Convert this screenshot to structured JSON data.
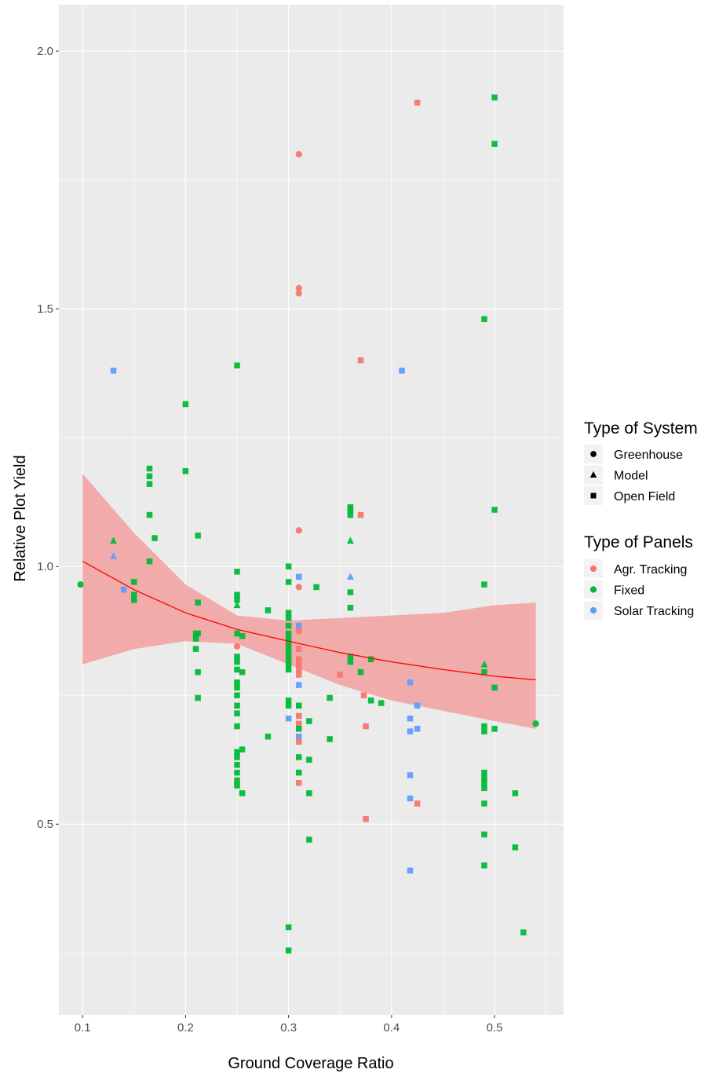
{
  "chart_data": {
    "type": "scatter",
    "title": "",
    "xlabel": "Ground Coverage Ratio",
    "ylabel": "Relative Plot Yield",
    "xlim": [
      0.077,
      0.567
    ],
    "ylim": [
      0.13,
      2.09
    ],
    "x_ticks": [
      0.1,
      0.2,
      0.3,
      0.4,
      0.5
    ],
    "x_tick_labels": [
      "0.1",
      "0.2",
      "0.3",
      "0.4",
      "0.5"
    ],
    "y_ticks": [
      0.5,
      1.0,
      1.5,
      2.0
    ],
    "y_tick_labels": [
      "0.5",
      "1.0",
      "1.5",
      "2.0"
    ],
    "grid": true,
    "legend_placement": "right",
    "colors": {
      "panel_bg": "#EBEBEB",
      "grid": "#FFFFFF",
      "Agr. Tracking": "#F8766D",
      "Fixed": "#00BA38",
      "Solar Tracking": "#619CFF",
      "trend": "#FF0000",
      "ribbon": "#F29B9B"
    },
    "legends": [
      {
        "title": "Type of System",
        "entries": [
          {
            "label": "Greenhouse",
            "shape": "circle"
          },
          {
            "label": "Model",
            "shape": "triangle"
          },
          {
            "label": "Open Field",
            "shape": "square"
          }
        ]
      },
      {
        "title": "Type of Panels",
        "entries": [
          {
            "label": "Agr. Tracking",
            "color": "#F8766D"
          },
          {
            "label": "Fixed",
            "color": "#00BA38"
          },
          {
            "label": "Solar Tracking",
            "color": "#619CFF"
          }
        ]
      }
    ],
    "trend": {
      "x": [
        0.1,
        0.15,
        0.2,
        0.25,
        0.3,
        0.35,
        0.4,
        0.45,
        0.5,
        0.54
      ],
      "y": [
        1.01,
        0.955,
        0.91,
        0.878,
        0.855,
        0.833,
        0.815,
        0.8,
        0.787,
        0.78
      ],
      "lower": [
        0.81,
        0.84,
        0.855,
        0.85,
        0.81,
        0.77,
        0.74,
        0.72,
        0.7,
        0.685
      ],
      "upper": [
        1.18,
        1.065,
        0.965,
        0.905,
        0.895,
        0.9,
        0.905,
        0.91,
        0.925,
        0.93
      ]
    },
    "points": [
      {
        "x": 0.098,
        "y": 0.965,
        "panel": "Fixed",
        "system": "Greenhouse"
      },
      {
        "x": 0.13,
        "y": 1.38,
        "panel": "Solar Tracking",
        "system": "Open Field"
      },
      {
        "x": 0.13,
        "y": 1.05,
        "panel": "Fixed",
        "system": "Model"
      },
      {
        "x": 0.13,
        "y": 1.02,
        "panel": "Solar Tracking",
        "system": "Model"
      },
      {
        "x": 0.14,
        "y": 0.955,
        "panel": "Solar Tracking",
        "system": "Open Field"
      },
      {
        "x": 0.15,
        "y": 0.97,
        "panel": "Fixed",
        "system": "Open Field"
      },
      {
        "x": 0.15,
        "y": 0.945,
        "panel": "Fixed",
        "system": "Open Field"
      },
      {
        "x": 0.15,
        "y": 0.935,
        "panel": "Fixed",
        "system": "Open Field"
      },
      {
        "x": 0.165,
        "y": 1.19,
        "panel": "Fixed",
        "system": "Open Field"
      },
      {
        "x": 0.165,
        "y": 1.175,
        "panel": "Fixed",
        "system": "Open Field"
      },
      {
        "x": 0.165,
        "y": 1.16,
        "panel": "Fixed",
        "system": "Open Field"
      },
      {
        "x": 0.165,
        "y": 1.1,
        "panel": "Fixed",
        "system": "Open Field"
      },
      {
        "x": 0.165,
        "y": 1.01,
        "panel": "Fixed",
        "system": "Open Field"
      },
      {
        "x": 0.17,
        "y": 1.055,
        "panel": "Fixed",
        "system": "Open Field"
      },
      {
        "x": 0.2,
        "y": 1.315,
        "panel": "Fixed",
        "system": "Open Field"
      },
      {
        "x": 0.2,
        "y": 1.185,
        "panel": "Fixed",
        "system": "Open Field"
      },
      {
        "x": 0.21,
        "y": 0.87,
        "panel": "Fixed",
        "system": "Open Field"
      },
      {
        "x": 0.21,
        "y": 0.86,
        "panel": "Fixed",
        "system": "Open Field"
      },
      {
        "x": 0.21,
        "y": 0.84,
        "panel": "Fixed",
        "system": "Open Field"
      },
      {
        "x": 0.212,
        "y": 1.06,
        "panel": "Fixed",
        "system": "Open Field"
      },
      {
        "x": 0.212,
        "y": 0.93,
        "panel": "Fixed",
        "system": "Open Field"
      },
      {
        "x": 0.212,
        "y": 0.87,
        "panel": "Fixed",
        "system": "Open Field"
      },
      {
        "x": 0.212,
        "y": 0.795,
        "panel": "Fixed",
        "system": "Open Field"
      },
      {
        "x": 0.212,
        "y": 0.745,
        "panel": "Fixed",
        "system": "Open Field"
      },
      {
        "x": 0.25,
        "y": 1.39,
        "panel": "Fixed",
        "system": "Open Field"
      },
      {
        "x": 0.25,
        "y": 0.99,
        "panel": "Fixed",
        "system": "Open Field"
      },
      {
        "x": 0.25,
        "y": 0.945,
        "panel": "Fixed",
        "system": "Open Field"
      },
      {
        "x": 0.25,
        "y": 0.935,
        "panel": "Fixed",
        "system": "Open Field"
      },
      {
        "x": 0.25,
        "y": 0.925,
        "panel": "Fixed",
        "system": "Model"
      },
      {
        "x": 0.25,
        "y": 0.87,
        "panel": "Fixed",
        "system": "Open Field"
      },
      {
        "x": 0.25,
        "y": 0.845,
        "panel": "Agr. Tracking",
        "system": "Greenhouse"
      },
      {
        "x": 0.25,
        "y": 0.825,
        "panel": "Fixed",
        "system": "Open Field"
      },
      {
        "x": 0.25,
        "y": 0.815,
        "panel": "Fixed",
        "system": "Open Field"
      },
      {
        "x": 0.25,
        "y": 0.8,
        "panel": "Fixed",
        "system": "Open Field"
      },
      {
        "x": 0.25,
        "y": 0.775,
        "panel": "Fixed",
        "system": "Open Field"
      },
      {
        "x": 0.25,
        "y": 0.765,
        "panel": "Fixed",
        "system": "Open Field"
      },
      {
        "x": 0.25,
        "y": 0.75,
        "panel": "Fixed",
        "system": "Open Field"
      },
      {
        "x": 0.25,
        "y": 0.73,
        "panel": "Fixed",
        "system": "Open Field"
      },
      {
        "x": 0.25,
        "y": 0.715,
        "panel": "Fixed",
        "system": "Open Field"
      },
      {
        "x": 0.25,
        "y": 0.69,
        "panel": "Fixed",
        "system": "Open Field"
      },
      {
        "x": 0.25,
        "y": 0.64,
        "panel": "Fixed",
        "system": "Open Field"
      },
      {
        "x": 0.25,
        "y": 0.63,
        "panel": "Fixed",
        "system": "Open Field"
      },
      {
        "x": 0.25,
        "y": 0.615,
        "panel": "Fixed",
        "system": "Open Field"
      },
      {
        "x": 0.25,
        "y": 0.6,
        "panel": "Fixed",
        "system": "Open Field"
      },
      {
        "x": 0.25,
        "y": 0.585,
        "panel": "Fixed",
        "system": "Open Field"
      },
      {
        "x": 0.25,
        "y": 0.575,
        "panel": "Fixed",
        "system": "Open Field"
      },
      {
        "x": 0.255,
        "y": 0.865,
        "panel": "Fixed",
        "system": "Open Field"
      },
      {
        "x": 0.255,
        "y": 0.795,
        "panel": "Fixed",
        "system": "Open Field"
      },
      {
        "x": 0.255,
        "y": 0.645,
        "panel": "Fixed",
        "system": "Open Field"
      },
      {
        "x": 0.255,
        "y": 0.56,
        "panel": "Fixed",
        "system": "Open Field"
      },
      {
        "x": 0.28,
        "y": 0.915,
        "panel": "Fixed",
        "system": "Open Field"
      },
      {
        "x": 0.28,
        "y": 0.67,
        "panel": "Fixed",
        "system": "Open Field"
      },
      {
        "x": 0.3,
        "y": 1.0,
        "panel": "Fixed",
        "system": "Open Field"
      },
      {
        "x": 0.3,
        "y": 0.97,
        "panel": "Fixed",
        "system": "Open Field"
      },
      {
        "x": 0.3,
        "y": 0.91,
        "panel": "Fixed",
        "system": "Open Field"
      },
      {
        "x": 0.3,
        "y": 0.9,
        "panel": "Fixed",
        "system": "Open Field"
      },
      {
        "x": 0.3,
        "y": 0.885,
        "panel": "Fixed",
        "system": "Open Field"
      },
      {
        "x": 0.3,
        "y": 0.87,
        "panel": "Fixed",
        "system": "Open Field"
      },
      {
        "x": 0.3,
        "y": 0.86,
        "panel": "Fixed",
        "system": "Open Field"
      },
      {
        "x": 0.3,
        "y": 0.85,
        "panel": "Fixed",
        "system": "Open Field"
      },
      {
        "x": 0.3,
        "y": 0.84,
        "panel": "Fixed",
        "system": "Open Field"
      },
      {
        "x": 0.3,
        "y": 0.83,
        "panel": "Fixed",
        "system": "Open Field"
      },
      {
        "x": 0.3,
        "y": 0.82,
        "panel": "Fixed",
        "system": "Open Field"
      },
      {
        "x": 0.3,
        "y": 0.81,
        "panel": "Fixed",
        "system": "Open Field"
      },
      {
        "x": 0.3,
        "y": 0.8,
        "panel": "Fixed",
        "system": "Open Field"
      },
      {
        "x": 0.3,
        "y": 0.74,
        "panel": "Fixed",
        "system": "Open Field"
      },
      {
        "x": 0.3,
        "y": 0.73,
        "panel": "Fixed",
        "system": "Open Field"
      },
      {
        "x": 0.3,
        "y": 0.705,
        "panel": "Solar Tracking",
        "system": "Open Field"
      },
      {
        "x": 0.3,
        "y": 0.3,
        "panel": "Fixed",
        "system": "Open Field"
      },
      {
        "x": 0.3,
        "y": 0.255,
        "panel": "Fixed",
        "system": "Open Field"
      },
      {
        "x": 0.31,
        "y": 1.8,
        "panel": "Agr. Tracking",
        "system": "Greenhouse"
      },
      {
        "x": 0.31,
        "y": 1.54,
        "panel": "Agr. Tracking",
        "system": "Greenhouse"
      },
      {
        "x": 0.31,
        "y": 1.53,
        "panel": "Agr. Tracking",
        "system": "Greenhouse"
      },
      {
        "x": 0.31,
        "y": 1.07,
        "panel": "Agr. Tracking",
        "system": "Greenhouse"
      },
      {
        "x": 0.31,
        "y": 0.98,
        "panel": "Solar Tracking",
        "system": "Open Field"
      },
      {
        "x": 0.31,
        "y": 0.96,
        "panel": "Agr. Tracking",
        "system": "Greenhouse"
      },
      {
        "x": 0.31,
        "y": 0.885,
        "panel": "Solar Tracking",
        "system": "Open Field"
      },
      {
        "x": 0.31,
        "y": 0.875,
        "panel": "Agr. Tracking",
        "system": "Greenhouse"
      },
      {
        "x": 0.31,
        "y": 0.84,
        "panel": "Agr. Tracking",
        "system": "Open Field"
      },
      {
        "x": 0.31,
        "y": 0.82,
        "panel": "Agr. Tracking",
        "system": "Open Field"
      },
      {
        "x": 0.31,
        "y": 0.81,
        "panel": "Agr. Tracking",
        "system": "Open Field"
      },
      {
        "x": 0.31,
        "y": 0.8,
        "panel": "Agr. Tracking",
        "system": "Open Field"
      },
      {
        "x": 0.31,
        "y": 0.79,
        "panel": "Agr. Tracking",
        "system": "Open Field"
      },
      {
        "x": 0.31,
        "y": 0.77,
        "panel": "Solar Tracking",
        "system": "Open Field"
      },
      {
        "x": 0.31,
        "y": 0.73,
        "panel": "Fixed",
        "system": "Open Field"
      },
      {
        "x": 0.31,
        "y": 0.71,
        "panel": "Agr. Tracking",
        "system": "Open Field"
      },
      {
        "x": 0.31,
        "y": 0.695,
        "panel": "Agr. Tracking",
        "system": "Open Field"
      },
      {
        "x": 0.31,
        "y": 0.685,
        "panel": "Fixed",
        "system": "Open Field"
      },
      {
        "x": 0.31,
        "y": 0.67,
        "panel": "Solar Tracking",
        "system": "Open Field"
      },
      {
        "x": 0.31,
        "y": 0.66,
        "panel": "Agr. Tracking",
        "system": "Open Field"
      },
      {
        "x": 0.31,
        "y": 0.63,
        "panel": "Fixed",
        "system": "Open Field"
      },
      {
        "x": 0.31,
        "y": 0.6,
        "panel": "Fixed",
        "system": "Open Field"
      },
      {
        "x": 0.31,
        "y": 0.58,
        "panel": "Agr. Tracking",
        "system": "Open Field"
      },
      {
        "x": 0.32,
        "y": 0.7,
        "panel": "Fixed",
        "system": "Open Field"
      },
      {
        "x": 0.32,
        "y": 0.625,
        "panel": "Fixed",
        "system": "Open Field"
      },
      {
        "x": 0.32,
        "y": 0.56,
        "panel": "Fixed",
        "system": "Open Field"
      },
      {
        "x": 0.32,
        "y": 0.47,
        "panel": "Fixed",
        "system": "Open Field"
      },
      {
        "x": 0.327,
        "y": 0.96,
        "panel": "Fixed",
        "system": "Open Field"
      },
      {
        "x": 0.34,
        "y": 0.745,
        "panel": "Fixed",
        "system": "Open Field"
      },
      {
        "x": 0.34,
        "y": 0.665,
        "panel": "Fixed",
        "system": "Open Field"
      },
      {
        "x": 0.35,
        "y": 0.79,
        "panel": "Agr. Tracking",
        "system": "Open Field"
      },
      {
        "x": 0.36,
        "y": 1.115,
        "panel": "Fixed",
        "system": "Open Field"
      },
      {
        "x": 0.36,
        "y": 1.11,
        "panel": "Fixed",
        "system": "Open Field"
      },
      {
        "x": 0.36,
        "y": 1.1,
        "panel": "Fixed",
        "system": "Open Field"
      },
      {
        "x": 0.36,
        "y": 1.05,
        "panel": "Fixed",
        "system": "Model"
      },
      {
        "x": 0.36,
        "y": 0.98,
        "panel": "Solar Tracking",
        "system": "Model"
      },
      {
        "x": 0.36,
        "y": 0.95,
        "panel": "Fixed",
        "system": "Open Field"
      },
      {
        "x": 0.36,
        "y": 0.92,
        "panel": "Fixed",
        "system": "Open Field"
      },
      {
        "x": 0.36,
        "y": 0.825,
        "panel": "Fixed",
        "system": "Open Field"
      },
      {
        "x": 0.36,
        "y": 0.815,
        "panel": "Fixed",
        "system": "Open Field"
      },
      {
        "x": 0.37,
        "y": 1.4,
        "panel": "Agr. Tracking",
        "system": "Open Field"
      },
      {
        "x": 0.37,
        "y": 1.1,
        "panel": "Agr. Tracking",
        "system": "Open Field"
      },
      {
        "x": 0.37,
        "y": 0.795,
        "panel": "Fixed",
        "system": "Open Field"
      },
      {
        "x": 0.373,
        "y": 0.75,
        "panel": "Agr. Tracking",
        "system": "Open Field"
      },
      {
        "x": 0.375,
        "y": 0.69,
        "panel": "Agr. Tracking",
        "system": "Open Field"
      },
      {
        "x": 0.375,
        "y": 0.51,
        "panel": "Agr. Tracking",
        "system": "Open Field"
      },
      {
        "x": 0.38,
        "y": 0.82,
        "panel": "Fixed",
        "system": "Open Field"
      },
      {
        "x": 0.38,
        "y": 0.74,
        "panel": "Fixed",
        "system": "Open Field"
      },
      {
        "x": 0.39,
        "y": 0.735,
        "panel": "Fixed",
        "system": "Open Field"
      },
      {
        "x": 0.41,
        "y": 1.38,
        "panel": "Solar Tracking",
        "system": "Open Field"
      },
      {
        "x": 0.418,
        "y": 0.775,
        "panel": "Solar Tracking",
        "system": "Open Field"
      },
      {
        "x": 0.418,
        "y": 0.705,
        "panel": "Solar Tracking",
        "system": "Open Field"
      },
      {
        "x": 0.418,
        "y": 0.68,
        "panel": "Solar Tracking",
        "system": "Open Field"
      },
      {
        "x": 0.418,
        "y": 0.595,
        "panel": "Solar Tracking",
        "system": "Open Field"
      },
      {
        "x": 0.418,
        "y": 0.55,
        "panel": "Solar Tracking",
        "system": "Open Field"
      },
      {
        "x": 0.418,
        "y": 0.41,
        "panel": "Solar Tracking",
        "system": "Open Field"
      },
      {
        "x": 0.425,
        "y": 1.9,
        "panel": "Agr. Tracking",
        "system": "Open Field"
      },
      {
        "x": 0.425,
        "y": 0.73,
        "panel": "Solar Tracking",
        "system": "Open Field"
      },
      {
        "x": 0.425,
        "y": 0.685,
        "panel": "Solar Tracking",
        "system": "Open Field"
      },
      {
        "x": 0.425,
        "y": 0.54,
        "panel": "Agr. Tracking",
        "system": "Open Field"
      },
      {
        "x": 0.49,
        "y": 1.48,
        "panel": "Fixed",
        "system": "Open Field"
      },
      {
        "x": 0.49,
        "y": 0.965,
        "panel": "Fixed",
        "system": "Open Field"
      },
      {
        "x": 0.49,
        "y": 0.81,
        "panel": "Fixed",
        "system": "Model"
      },
      {
        "x": 0.49,
        "y": 0.795,
        "panel": "Fixed",
        "system": "Open Field"
      },
      {
        "x": 0.49,
        "y": 0.69,
        "panel": "Fixed",
        "system": "Open Field"
      },
      {
        "x": 0.49,
        "y": 0.68,
        "panel": "Fixed",
        "system": "Open Field"
      },
      {
        "x": 0.49,
        "y": 0.6,
        "panel": "Fixed",
        "system": "Open Field"
      },
      {
        "x": 0.49,
        "y": 0.59,
        "panel": "Fixed",
        "system": "Open Field"
      },
      {
        "x": 0.49,
        "y": 0.58,
        "panel": "Fixed",
        "system": "Open Field"
      },
      {
        "x": 0.49,
        "y": 0.57,
        "panel": "Fixed",
        "system": "Open Field"
      },
      {
        "x": 0.49,
        "y": 0.54,
        "panel": "Fixed",
        "system": "Open Field"
      },
      {
        "x": 0.49,
        "y": 0.48,
        "panel": "Fixed",
        "system": "Open Field"
      },
      {
        "x": 0.49,
        "y": 0.42,
        "panel": "Fixed",
        "system": "Open Field"
      },
      {
        "x": 0.5,
        "y": 1.91,
        "panel": "Fixed",
        "system": "Open Field"
      },
      {
        "x": 0.5,
        "y": 1.82,
        "panel": "Fixed",
        "system": "Open Field"
      },
      {
        "x": 0.5,
        "y": 1.11,
        "panel": "Fixed",
        "system": "Open Field"
      },
      {
        "x": 0.5,
        "y": 0.765,
        "panel": "Fixed",
        "system": "Open Field"
      },
      {
        "x": 0.5,
        "y": 0.685,
        "panel": "Fixed",
        "system": "Open Field"
      },
      {
        "x": 0.52,
        "y": 0.56,
        "panel": "Fixed",
        "system": "Open Field"
      },
      {
        "x": 0.52,
        "y": 0.455,
        "panel": "Fixed",
        "system": "Open Field"
      },
      {
        "x": 0.528,
        "y": 0.29,
        "panel": "Fixed",
        "system": "Open Field"
      },
      {
        "x": 0.54,
        "y": 0.695,
        "panel": "Fixed",
        "system": "Greenhouse"
      }
    ]
  }
}
